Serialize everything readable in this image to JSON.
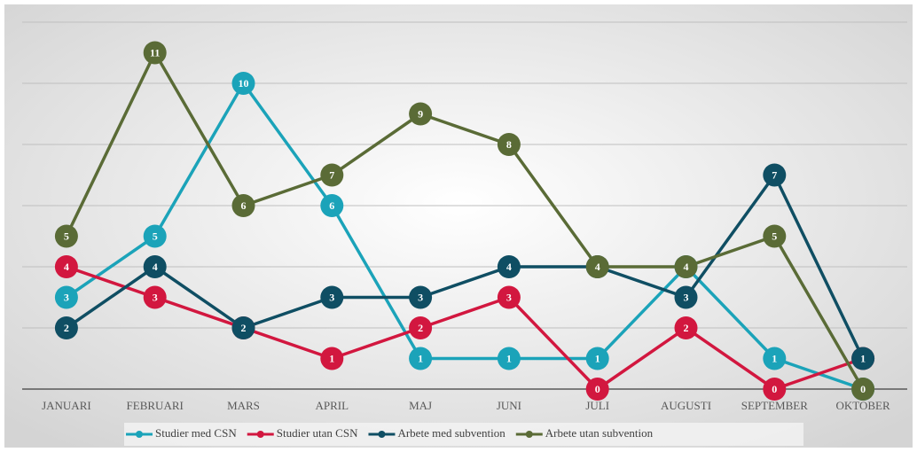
{
  "chart_data": {
    "type": "line",
    "categories": [
      "JANUARI",
      "FEBRUARI",
      "MARS",
      "APRIL",
      "MAJ",
      "JUNI",
      "JULI",
      "AUGUSTI",
      "SEPTEMBER",
      "OKTOBER"
    ],
    "series": [
      {
        "name": "Studier med CSN",
        "color": "#1ba3b9",
        "values": [
          3,
          5,
          10,
          6,
          1,
          1,
          1,
          4,
          1,
          0
        ]
      },
      {
        "name": "Studier utan CSN",
        "color": "#d2173f",
        "values": [
          4,
          3,
          2,
          1,
          2,
          3,
          0,
          2,
          0,
          1
        ]
      },
      {
        "name": "Arbete med subvention",
        "color": "#0f4e63",
        "values": [
          2,
          4,
          2,
          3,
          3,
          4,
          4,
          3,
          7,
          1
        ]
      },
      {
        "name": "Arbete utan subvention",
        "color": "#5a6b36",
        "values": [
          5,
          11,
          6,
          7,
          9,
          8,
          4,
          4,
          5,
          0
        ]
      }
    ],
    "ylim": [
      0,
      12
    ],
    "yticks": [
      0,
      2,
      4,
      6,
      8,
      10,
      12
    ],
    "grid": true,
    "legend": "bottom"
  }
}
